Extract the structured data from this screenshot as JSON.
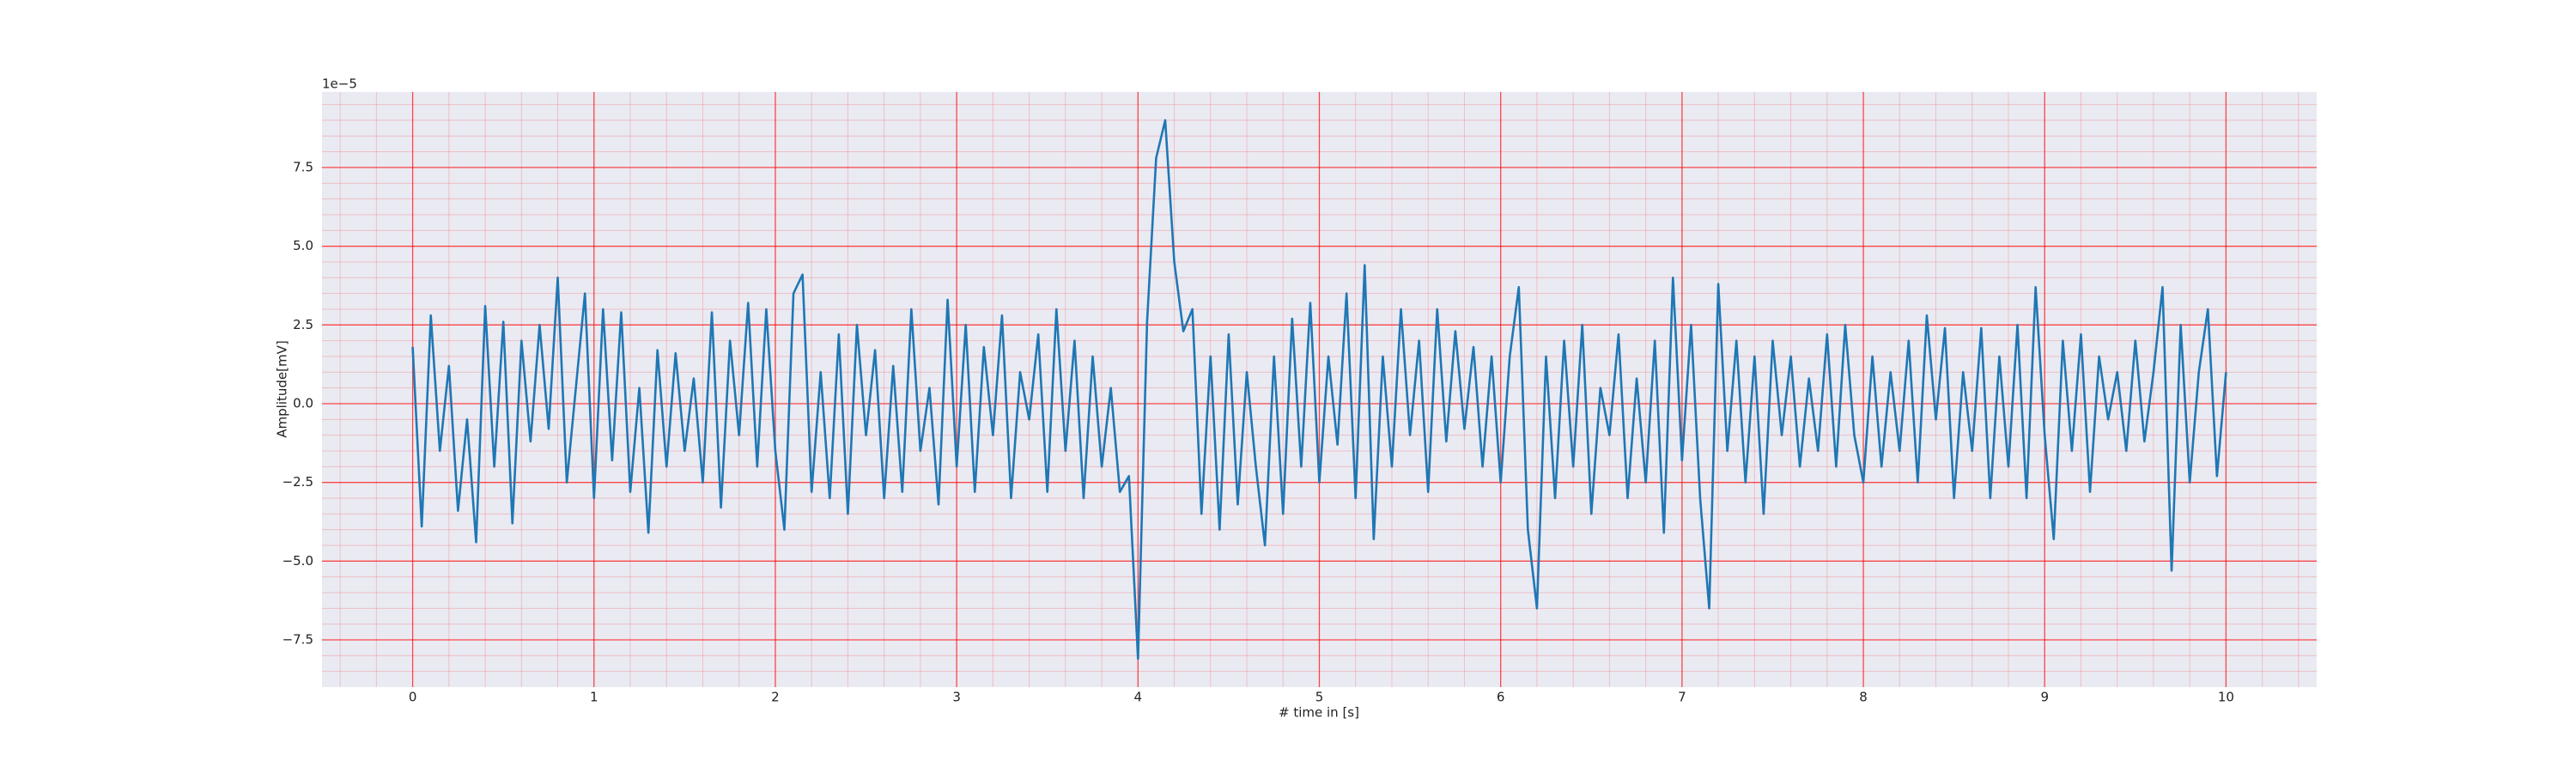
{
  "chart_data": {
    "type": "line",
    "xlabel": "# time in [s]",
    "ylabel": "Amplitude[mV]",
    "y_offset_label": "1e−5",
    "color": "#1f77b4",
    "background": "#eaeaf2",
    "grid": true,
    "grid_color": "#ff0000",
    "xlim": [
      -0.5,
      10.5
    ],
    "ylim": [
      -9e-05,
      9.9e-05
    ],
    "xticks": [
      0,
      1,
      2,
      3,
      4,
      5,
      6,
      7,
      8,
      9,
      10
    ],
    "yticks": [
      {
        "value": -7.5e-05,
        "label": "−7.5"
      },
      {
        "value": -5e-05,
        "label": "−5.0"
      },
      {
        "value": -2.5e-05,
        "label": "−2.5"
      },
      {
        "value": 0,
        "label": "0.0"
      },
      {
        "value": 2.5e-05,
        "label": "2.5"
      },
      {
        "value": 5e-05,
        "label": "5.0"
      },
      {
        "value": 7.5e-05,
        "label": "7.5"
      }
    ],
    "xminorticks": [
      -0.4,
      -0.2,
      0.2,
      0.4,
      0.6,
      0.8,
      1.2,
      1.4,
      1.6,
      1.8,
      2.2,
      2.4,
      2.6,
      2.8,
      3.2,
      3.4,
      3.6,
      3.8,
      4.2,
      4.4,
      4.6,
      4.8,
      5.2,
      5.4,
      5.6,
      5.8,
      6.2,
      6.4,
      6.6,
      6.8,
      7.2,
      7.4,
      7.6,
      7.8,
      8.2,
      8.4,
      8.6,
      8.8,
      9.2,
      9.4,
      9.6,
      9.8,
      10.2,
      10.4
    ],
    "yminorticks": [
      -8.5e-05,
      -8e-05,
      -7e-05,
      -6.5e-05,
      -6e-05,
      -5.5e-05,
      -4.5e-05,
      -4e-05,
      -3.5e-05,
      -3e-05,
      -2e-05,
      -1.5e-05,
      -1e-05,
      -5e-06,
      5e-06,
      1e-05,
      1.5e-05,
      2e-05,
      3e-05,
      3.5e-05,
      4e-05,
      4.5e-05,
      5.5e-05,
      6e-05,
      6.5e-05,
      7e-05,
      8e-05,
      8.5e-05,
      9e-05,
      9.5e-05
    ],
    "x": [
      0,
      0.05,
      0.1,
      0.15,
      0.2,
      0.25,
      0.3,
      0.35,
      0.4,
      0.45,
      0.5,
      0.55,
      0.6,
      0.65,
      0.7,
      0.75,
      0.8,
      0.85,
      0.9,
      0.95,
      1,
      1.05,
      1.1,
      1.15,
      1.2,
      1.25,
      1.3,
      1.35,
      1.4,
      1.45,
      1.5,
      1.55,
      1.6,
      1.65,
      1.7,
      1.75,
      1.8,
      1.85,
      1.9,
      1.95,
      2,
      2.05,
      2.1,
      2.15,
      2.2,
      2.25,
      2.3,
      2.35,
      2.4,
      2.45,
      2.5,
      2.55,
      2.6,
      2.65,
      2.7,
      2.75,
      2.8,
      2.85,
      2.9,
      2.95,
      3,
      3.05,
      3.1,
      3.15,
      3.2,
      3.25,
      3.3,
      3.35,
      3.4,
      3.45,
      3.5,
      3.55,
      3.6,
      3.65,
      3.7,
      3.75,
      3.8,
      3.85,
      3.9,
      3.95,
      4,
      4.05,
      4.1,
      4.15,
      4.2,
      4.25,
      4.3,
      4.35,
      4.4,
      4.45,
      4.5,
      4.55,
      4.6,
      4.65,
      4.7,
      4.75,
      4.8,
      4.85,
      4.9,
      4.95,
      5,
      5.05,
      5.1,
      5.15,
      5.2,
      5.25,
      5.3,
      5.35,
      5.4,
      5.45,
      5.5,
      5.55,
      5.6,
      5.65,
      5.7,
      5.75,
      5.8,
      5.85,
      5.9,
      5.95,
      6,
      6.05,
      6.1,
      6.15,
      6.2,
      6.25,
      6.3,
      6.35,
      6.4,
      6.45,
      6.5,
      6.55,
      6.6,
      6.65,
      6.7,
      6.75,
      6.8,
      6.85,
      6.9,
      6.95,
      7,
      7.05,
      7.1,
      7.15,
      7.2,
      7.25,
      7.3,
      7.35,
      7.4,
      7.45,
      7.5,
      7.55,
      7.6,
      7.65,
      7.7,
      7.75,
      7.8,
      7.85,
      7.9,
      7.95,
      8,
      8.05,
      8.1,
      8.15,
      8.2,
      8.25,
      8.3,
      8.35,
      8.4,
      8.45,
      8.5,
      8.55,
      8.6,
      8.65,
      8.7,
      8.75,
      8.8,
      8.85,
      8.9,
      8.95,
      9,
      9.05,
      9.1,
      9.15,
      9.2,
      9.25,
      9.3,
      9.35,
      9.4,
      9.45,
      9.5,
      9.55,
      9.6,
      9.65,
      9.7,
      9.75,
      9.8,
      9.85,
      9.9,
      9.95,
      10
    ],
    "values": [
      1.8e-05,
      -3.9e-05,
      2.8e-05,
      -1.5e-05,
      1.2e-05,
      -3.4e-05,
      -5e-06,
      -4.4e-05,
      3.1e-05,
      -2e-05,
      2.6e-05,
      -3.8e-05,
      2e-05,
      -1.2e-05,
      2.5e-05,
      -8e-06,
      4e-05,
      -2.5e-05,
      5e-06,
      3.5e-05,
      -3e-05,
      3e-05,
      -1.8e-05,
      2.9e-05,
      -2.8e-05,
      5e-06,
      -4.1e-05,
      1.7e-05,
      -2e-05,
      1.6e-05,
      -1.5e-05,
      8e-06,
      -2.5e-05,
      2.9e-05,
      -3.3e-05,
      2e-05,
      -1e-05,
      3.2e-05,
      -2e-05,
      3e-05,
      -1.5e-05,
      -4e-05,
      3.5e-05,
      4.1e-05,
      -2.8e-05,
      1e-05,
      -3e-05,
      2.2e-05,
      -3.5e-05,
      2.5e-05,
      -1e-05,
      1.7e-05,
      -3e-05,
      1.2e-05,
      -2.8e-05,
      3e-05,
      -1.5e-05,
      5e-06,
      -3.2e-05,
      3.3e-05,
      -2e-05,
      2.5e-05,
      -2.8e-05,
      1.8e-05,
      -1e-05,
      2.8e-05,
      -3e-05,
      1e-05,
      -5e-06,
      2.2e-05,
      -2.8e-05,
      3e-05,
      -1.5e-05,
      2e-05,
      -3e-05,
      1.5e-05,
      -2e-05,
      5e-06,
      -2.8e-05,
      -2.3e-05,
      -8.1e-05,
      2.6e-05,
      7.8e-05,
      9e-05,
      4.5e-05,
      2.3e-05,
      3e-05,
      -3.5e-05,
      1.5e-05,
      -4e-05,
      2.2e-05,
      -3.2e-05,
      1e-05,
      -2e-05,
      -4.5e-05,
      1.5e-05,
      -3.5e-05,
      2.7e-05,
      -2e-05,
      3.2e-05,
      -2.5e-05,
      1.5e-05,
      -1.3e-05,
      3.5e-05,
      -3e-05,
      4.4e-05,
      -4.3e-05,
      1.5e-05,
      -2e-05,
      3e-05,
      -1e-05,
      2e-05,
      -2.8e-05,
      3e-05,
      -1.2e-05,
      2.3e-05,
      -8e-06,
      1.8e-05,
      -2e-05,
      1.5e-05,
      -2.5e-05,
      1.5e-05,
      3.7e-05,
      -4e-05,
      -6.5e-05,
      1.5e-05,
      -3e-05,
      2e-05,
      -2e-05,
      2.5e-05,
      -3.5e-05,
      5e-06,
      -1e-05,
      2.2e-05,
      -3e-05,
      8e-06,
      -2.5e-05,
      2e-05,
      -4.1e-05,
      4e-05,
      -1.8e-05,
      2.5e-05,
      -3e-05,
      -6.5e-05,
      3.8e-05,
      -1.5e-05,
      2e-05,
      -2.5e-05,
      1.5e-05,
      -3.5e-05,
      2e-05,
      -1e-05,
      1.5e-05,
      -2e-05,
      8e-06,
      -1.5e-05,
      2.2e-05,
      -2e-05,
      2.5e-05,
      -1e-05,
      -2.5e-05,
      1.5e-05,
      -2e-05,
      1e-05,
      -1.5e-05,
      2e-05,
      -2.5e-05,
      2.8e-05,
      -5e-06,
      2.4e-05,
      -3e-05,
      1e-05,
      -1.5e-05,
      2.4e-05,
      -3e-05,
      1.5e-05,
      -2e-05,
      2.5e-05,
      -3e-05,
      3.7e-05,
      -1e-05,
      -4.3e-05,
      2e-05,
      -1.5e-05,
      2.2e-05,
      -2.8e-05,
      1.5e-05,
      -5e-06,
      1e-05,
      -1.5e-05,
      2e-05,
      -1.2e-05,
      1e-05,
      3.7e-05,
      -5.3e-05,
      2.5e-05,
      -2.5e-05,
      1e-05,
      3e-05,
      -2.3e-05,
      1e-05
    ]
  }
}
